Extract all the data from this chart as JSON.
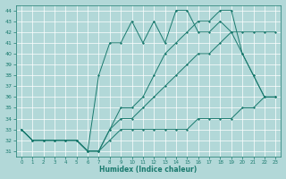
{
  "xlabel": "Humidex (Indice chaleur)",
  "bg_color": "#b2d8d8",
  "grid_color": "#ffffff",
  "line_color": "#1a7a6e",
  "xlim": [
    -0.5,
    23.5
  ],
  "ylim": [
    30.5,
    44.5
  ],
  "yticks": [
    31,
    32,
    33,
    34,
    35,
    36,
    37,
    38,
    39,
    40,
    41,
    42,
    43,
    44
  ],
  "xticks": [
    0,
    1,
    2,
    3,
    4,
    5,
    6,
    7,
    8,
    9,
    10,
    11,
    12,
    13,
    14,
    15,
    16,
    17,
    18,
    19,
    20,
    21,
    22,
    23
  ],
  "series": [
    [
      33,
      32,
      32,
      32,
      32,
      32,
      31,
      31,
      32,
      33,
      33,
      33,
      33,
      33,
      33,
      33,
      34,
      34,
      34,
      34,
      35,
      35,
      36,
      36
    ],
    [
      33,
      32,
      32,
      32,
      32,
      32,
      31,
      38,
      41,
      41,
      43,
      41,
      43,
      41,
      44,
      44,
      42,
      42,
      43,
      42,
      40,
      38,
      36,
      36
    ],
    [
      33,
      32,
      32,
      32,
      32,
      32,
      31,
      31,
      33,
      35,
      35,
      36,
      38,
      40,
      41,
      42,
      43,
      43,
      44,
      44,
      40,
      38,
      36,
      36
    ],
    [
      33,
      32,
      32,
      32,
      32,
      32,
      31,
      31,
      33,
      34,
      34,
      35,
      36,
      37,
      38,
      39,
      40,
      40,
      41,
      42,
      42,
      42,
      42,
      42
    ]
  ]
}
